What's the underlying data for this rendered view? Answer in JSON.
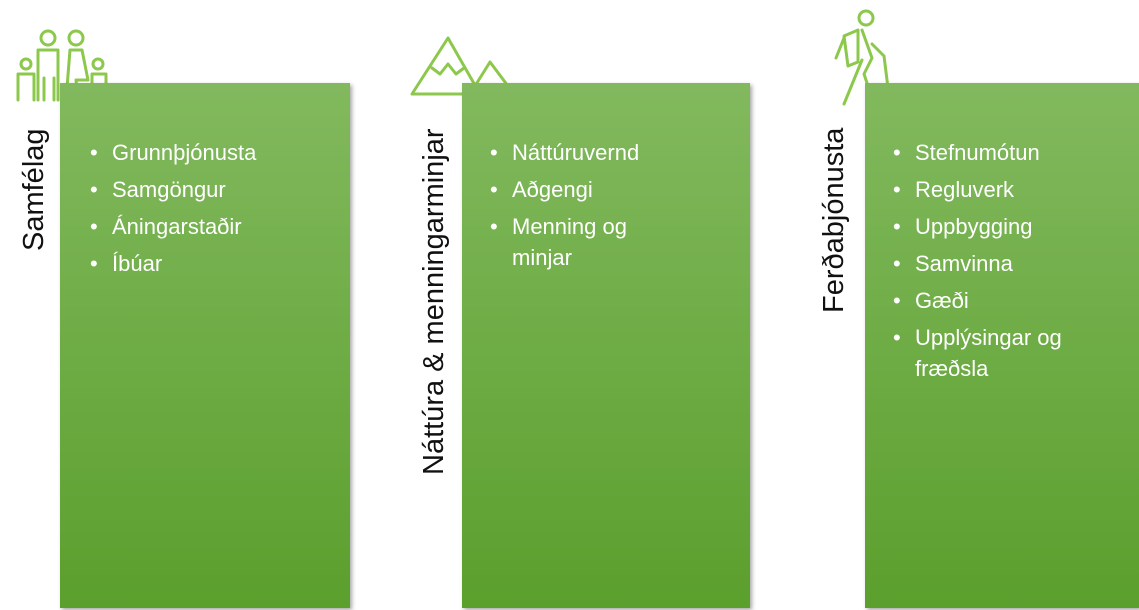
{
  "columns": [
    {
      "title": "Samfélag",
      "items": [
        "Grunnþjónusta",
        "Samgöngur",
        "Áningarstaðir",
        "Íbúar"
      ]
    },
    {
      "title": "Náttúra & menningarminjar",
      "items": [
        "Náttúruvernd",
        "Aðgengi",
        "Menning og minjar"
      ]
    },
    {
      "title": "Ferðabjónusta",
      "items": [
        "Stefnumótun",
        "Regluverk",
        "Uppbygging",
        "Samvinna",
        "Gæði",
        "Upplýsingar og fræðsla"
      ]
    }
  ]
}
